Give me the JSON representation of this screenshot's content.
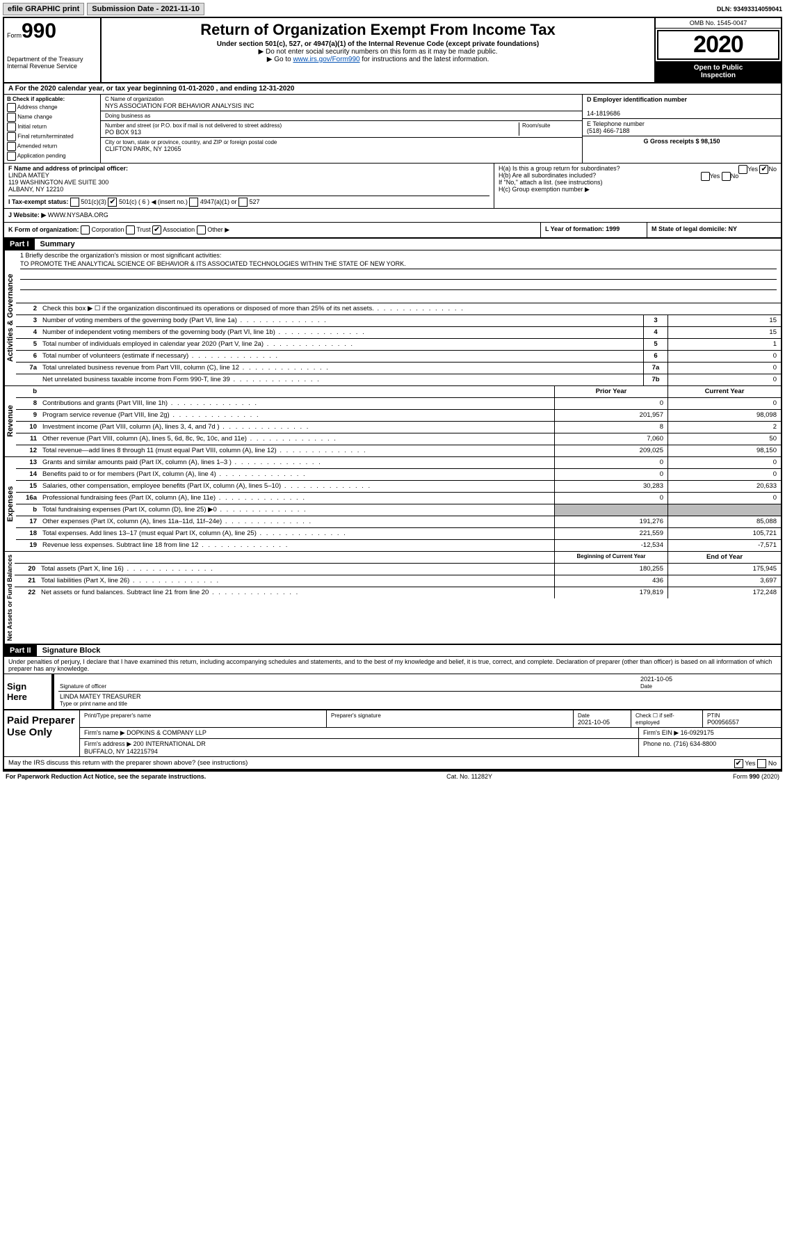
{
  "topbar": {
    "efile": "efile GRAPHIC print",
    "submission_label": "Submission Date - 2021-11-10",
    "dln": "DLN: 93493314059041"
  },
  "header": {
    "form_word": "Form",
    "form_num": "990",
    "dept": "Department of the Treasury\nInternal Revenue Service",
    "title": "Return of Organization Exempt From Income Tax",
    "sub1": "Under section 501(c), 527, or 4947(a)(1) of the Internal Revenue Code (except private foundations)",
    "sub2": "▶ Do not enter social security numbers on this form as it may be made public.",
    "sub3_pre": "▶ Go to ",
    "sub3_link": "www.irs.gov/Form990",
    "sub3_post": " for instructions and the latest information.",
    "omb": "OMB No. 1545-0047",
    "year": "2020",
    "open1": "Open to Public",
    "open2": "Inspection"
  },
  "rowA": "A For the 2020 calendar year, or tax year beginning 01-01-2020    , and ending 12-31-2020",
  "boxB": {
    "title": "B Check if applicable:",
    "opts": [
      "Address change",
      "Name change",
      "Initial return",
      "Final return/terminated",
      "Amended return",
      "Application pending"
    ]
  },
  "boxC": {
    "label1": "C Name of organization",
    "name": "NYS ASSOCIATION FOR BEHAVIOR ANALYSIS INC",
    "dba_label": "Doing business as",
    "addr_label": "Number and street (or P.O. box if mail is not delivered to street address)",
    "room_label": "Room/suite",
    "addr": "PO BOX 913",
    "city_label": "City or town, state or province, country, and ZIP or foreign postal code",
    "city": "CLIFTON PARK, NY  12065"
  },
  "boxD": {
    "label": "D Employer identification number",
    "val": "14-1819686"
  },
  "boxE": {
    "label": "E Telephone number",
    "val": "(518) 466-7188"
  },
  "boxG": {
    "label": "G Gross receipts $ 98,150"
  },
  "boxF": {
    "label": "F  Name and address of principal officer:",
    "name": "LINDA MATEY",
    "addr": "119 WASHINGTON AVE SUITE 300\nALBANY, NY  12210"
  },
  "boxH": {
    "a": "H(a)  Is this a group return for subordinates?",
    "b": "H(b)  Are all subordinates included?",
    "note": "If \"No,\" attach a list. (see instructions)",
    "c": "H(c)  Group exemption number ▶",
    "yes": "Yes",
    "no": "No"
  },
  "rowI": {
    "label": "I   Tax-exempt status:",
    "o1": "501(c)(3)",
    "o2": "501(c) ( 6 ) ◀ (insert no.)",
    "o3": "4947(a)(1) or",
    "o4": "527"
  },
  "rowJ": {
    "label": "J   Website: ▶",
    "val": "WWW.NYSABA.ORG"
  },
  "rowK": {
    "label": "K Form of organization:",
    "o1": "Corporation",
    "o2": "Trust",
    "o3": "Association",
    "o4": "Other ▶"
  },
  "rowL": {
    "label": "L Year of formation: 1999"
  },
  "rowM": {
    "label": "M State of legal domicile: NY"
  },
  "part1": {
    "hdr": "Part I",
    "title": "Summary"
  },
  "mission": {
    "q": "1  Briefly describe the organization's mission or most significant activities:",
    "text": "TO PROMOTE THE ANALYTICAL SCIENCE OF BEHAVIOR & ITS ASSOCIATED TECHNOLOGIES WITHIN THE STATE OF NEW YORK."
  },
  "lines_gov": [
    {
      "n": "2",
      "d": "Check this box ▶ ☐  if the organization discontinued its operations or disposed of more than 25% of its net assets.",
      "box": "",
      "val": ""
    },
    {
      "n": "3",
      "d": "Number of voting members of the governing body (Part VI, line 1a)",
      "box": "3",
      "val": "15"
    },
    {
      "n": "4",
      "d": "Number of independent voting members of the governing body (Part VI, line 1b)",
      "box": "4",
      "val": "15"
    },
    {
      "n": "5",
      "d": "Total number of individuals employed in calendar year 2020 (Part V, line 2a)",
      "box": "5",
      "val": "1"
    },
    {
      "n": "6",
      "d": "Total number of volunteers (estimate if necessary)",
      "box": "6",
      "val": "0"
    },
    {
      "n": "7a",
      "d": "Total unrelated business revenue from Part VIII, column (C), line 12",
      "box": "7a",
      "val": "0"
    },
    {
      "n": "",
      "d": "Net unrelated business taxable income from Form 990-T, line 39",
      "box": "7b",
      "val": "0"
    }
  ],
  "col_hdr": {
    "prior": "Prior Year",
    "curr": "Current Year"
  },
  "lines_rev": [
    {
      "n": "8",
      "d": "Contributions and grants (Part VIII, line 1h)",
      "p": "0",
      "c": "0"
    },
    {
      "n": "9",
      "d": "Program service revenue (Part VIII, line 2g)",
      "p": "201,957",
      "c": "98,098"
    },
    {
      "n": "10",
      "d": "Investment income (Part VIII, column (A), lines 3, 4, and 7d )",
      "p": "8",
      "c": "2"
    },
    {
      "n": "11",
      "d": "Other revenue (Part VIII, column (A), lines 5, 6d, 8c, 9c, 10c, and 11e)",
      "p": "7,060",
      "c": "50"
    },
    {
      "n": "12",
      "d": "Total revenue—add lines 8 through 11 (must equal Part VIII, column (A), line 12)",
      "p": "209,025",
      "c": "98,150"
    }
  ],
  "lines_exp": [
    {
      "n": "13",
      "d": "Grants and similar amounts paid (Part IX, column (A), lines 1–3 )",
      "p": "0",
      "c": "0"
    },
    {
      "n": "14",
      "d": "Benefits paid to or for members (Part IX, column (A), line 4)",
      "p": "0",
      "c": "0"
    },
    {
      "n": "15",
      "d": "Salaries, other compensation, employee benefits (Part IX, column (A), lines 5–10)",
      "p": "30,283",
      "c": "20,633"
    },
    {
      "n": "16a",
      "d": "Professional fundraising fees (Part IX, column (A), line 11e)",
      "p": "0",
      "c": "0"
    },
    {
      "n": "b",
      "d": "Total fundraising expenses (Part IX, column (D), line 25) ▶0",
      "p": "SHADE",
      "c": "SHADE"
    },
    {
      "n": "17",
      "d": "Other expenses (Part IX, column (A), lines 11a–11d, 11f–24e)",
      "p": "191,276",
      "c": "85,088"
    },
    {
      "n": "18",
      "d": "Total expenses. Add lines 13–17 (must equal Part IX, column (A), line 25)",
      "p": "221,559",
      "c": "105,721"
    },
    {
      "n": "19",
      "d": "Revenue less expenses. Subtract line 18 from line 12",
      "p": "-12,534",
      "c": "-7,571"
    }
  ],
  "col_hdr2": {
    "prior": "Beginning of Current Year",
    "curr": "End of Year"
  },
  "lines_net": [
    {
      "n": "20",
      "d": "Total assets (Part X, line 16)",
      "p": "180,255",
      "c": "175,945"
    },
    {
      "n": "21",
      "d": "Total liabilities (Part X, line 26)",
      "p": "436",
      "c": "3,697"
    },
    {
      "n": "22",
      "d": "Net assets or fund balances. Subtract line 21 from line 20",
      "p": "179,819",
      "c": "172,248"
    }
  ],
  "vlabels": {
    "gov": "Activities & Governance",
    "rev": "Revenue",
    "exp": "Expenses",
    "net": "Net Assets or Fund Balances"
  },
  "part2": {
    "hdr": "Part II",
    "title": "Signature Block"
  },
  "penalty": "Under penalties of perjury, I declare that I have examined this return, including accompanying schedules and statements, and to the best of my knowledge and belief, it is true, correct, and complete. Declaration of preparer (other than officer) is based on all information of which preparer has any knowledge.",
  "sign": {
    "here": "Sign Here",
    "sig_label": "Signature of officer",
    "date": "2021-10-05",
    "date_label": "Date",
    "name": "LINDA MATEY TREASURER",
    "name_label": "Type or print name and title"
  },
  "paid": {
    "title": "Paid Preparer Use Only",
    "h1": "Print/Type preparer's name",
    "h2": "Preparer's signature",
    "h3": "Date",
    "h3v": "2021-10-05",
    "h4": "Check ☐ if self-employed",
    "h5": "PTIN",
    "h5v": "P00956557",
    "firm_name_l": "Firm's name    ▶",
    "firm_name": "DOPKINS & COMPANY LLP",
    "firm_ein_l": "Firm's EIN ▶",
    "firm_ein": "16-0929175",
    "firm_addr_l": "Firm's address ▶",
    "firm_addr": "200 INTERNATIONAL DR\nBUFFALO, NY  142215794",
    "phone_l": "Phone no.",
    "phone": "(716) 634-8800"
  },
  "discuss": "May the IRS discuss this return with the preparer shown above? (see instructions)",
  "footer": {
    "l": "For Paperwork Reduction Act Notice, see the separate instructions.",
    "m": "Cat. No. 11282Y",
    "r": "Form 990 (2020)"
  },
  "yes": "Yes",
  "no": "No",
  "colors": {
    "link": "#0050b3"
  }
}
